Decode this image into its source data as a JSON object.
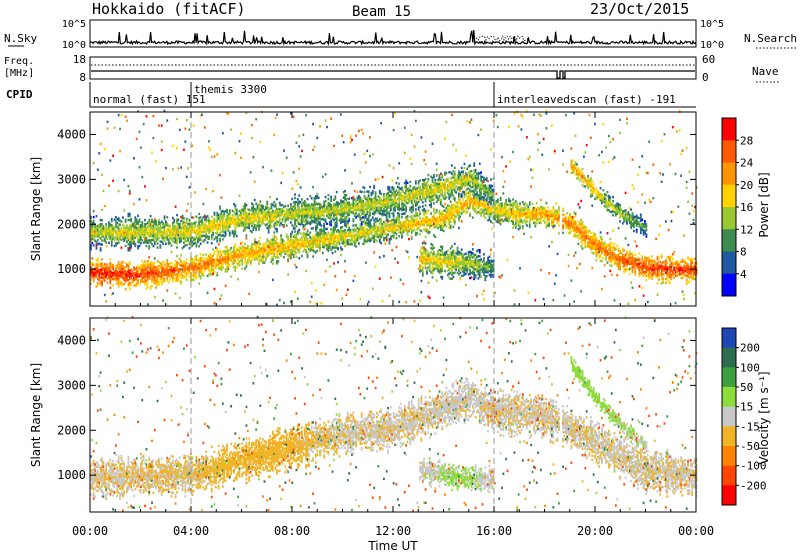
{
  "header": {
    "station": "Hokkaido (fitACF)",
    "beam": "Beam 15",
    "date": "23/Oct/2015"
  },
  "top_panels": {
    "nsky_label": "N.Sky",
    "nsearch_label": "N.Search",
    "nsky_ticks": [
      "10^5",
      "10^0"
    ],
    "nsearch_ticks": [
      "10^5",
      "10^0"
    ],
    "freq_label_1": "Freq.",
    "freq_label_2": "[MHz]",
    "freq_ticks": [
      "18",
      "8"
    ],
    "nave_label": "Nave",
    "nave_ticks": [
      "60",
      "0"
    ],
    "cpid_label": "CPID",
    "cpid_segments": [
      {
        "name": "normal (fast) 151",
        "start_h": 0.0,
        "end_h": 4.0
      },
      {
        "name": "themis 3300",
        "start_h": 4.0,
        "end_h": 16.0
      },
      {
        "name": "interleavedscan (fast) -191",
        "start_h": 16.0,
        "end_h": 24.0
      }
    ]
  },
  "power_legend": {
    "label": "Power [dB]",
    "ticks": [
      "28",
      "24",
      "20",
      "16",
      "12",
      "8",
      "4"
    ],
    "colors": [
      "#ff0000",
      "#ff5a00",
      "#ff9600",
      "#ffd200",
      "#9ac832",
      "#3c8c50",
      "#1e5aa0",
      "#0000ff"
    ]
  },
  "velocity_legend": {
    "label": "Velocity [m s⁻¹]",
    "ticks": [
      "200",
      "100",
      "50",
      "15",
      "-15",
      "-50",
      "-100",
      "-200"
    ],
    "colors": [
      "#1e46b4",
      "#2e6e50",
      "#3ca03c",
      "#8cdc3c",
      "#c8c8c8",
      "#f0b428",
      "#ff8200",
      "#ff4600",
      "#ff0000"
    ]
  },
  "chart_data": {
    "type": "heatmap",
    "xlabel": "Time UT",
    "ylabel": "Slant Range [km]",
    "x_ticks": [
      "00:00",
      "04:00",
      "08:00",
      "12:00",
      "16:00",
      "20:00",
      "00:00"
    ],
    "y_ticks": [
      "1000",
      "2000",
      "3000",
      "4000"
    ],
    "xlim_hours": [
      0,
      24
    ],
    "ylim_km": [
      180,
      4500
    ],
    "cpid_change_hours": [
      4.0,
      16.0
    ],
    "data_gap_hours": [
      18.55,
      18.65
    ],
    "power_backscatter_bands": [
      {
        "points": [
          [
            0.0,
            900,
            30
          ],
          [
            2.0,
            850,
            28
          ],
          [
            4.0,
            1000,
            25
          ],
          [
            6.0,
            1300,
            22
          ],
          [
            8.0,
            1500,
            20
          ],
          [
            10.0,
            1700,
            18
          ],
          [
            12.0,
            1900,
            18
          ],
          [
            13.0,
            2000,
            20
          ],
          [
            14.0,
            2100,
            20
          ],
          [
            15.0,
            2500,
            22
          ],
          [
            16.0,
            2300,
            18
          ],
          [
            17.0,
            2200,
            20
          ],
          [
            18.0,
            2200,
            22
          ],
          [
            19.0,
            2000,
            24
          ],
          [
            20.0,
            1500,
            24
          ],
          [
            21.0,
            1200,
            26
          ],
          [
            22.0,
            1000,
            28
          ],
          [
            24.0,
            950,
            28
          ]
        ],
        "width_km": 260
      },
      {
        "points": [
          [
            0.0,
            1800,
            16
          ],
          [
            4.0,
            1800,
            18
          ],
          [
            6.0,
            2100,
            18
          ],
          [
            8.0,
            2200,
            16
          ],
          [
            10.0,
            2300,
            16
          ],
          [
            12.0,
            2500,
            16
          ],
          [
            14.0,
            2800,
            18
          ],
          [
            15.0,
            3000,
            16
          ],
          [
            16.0,
            2600,
            12
          ]
        ],
        "width_km": 320
      },
      {
        "points": [
          [
            13.0,
            1200,
            20
          ],
          [
            14.0,
            1150,
            18
          ],
          [
            15.0,
            1100,
            16
          ],
          [
            16.0,
            1000,
            12
          ]
        ],
        "width_km": 300
      },
      {
        "points": [
          [
            19.0,
            3300,
            22
          ],
          [
            20.0,
            2700,
            20
          ],
          [
            21.0,
            2200,
            16
          ],
          [
            22.0,
            1900,
            12
          ]
        ],
        "width_km": 180
      }
    ],
    "velocity_backscatter_bands": [
      {
        "points": [
          [
            0.0,
            900,
            -10
          ],
          [
            4.0,
            1000,
            -20
          ],
          [
            6.0,
            1300,
            -40
          ],
          [
            8.0,
            1600,
            -30
          ],
          [
            10.0,
            1900,
            -10
          ],
          [
            12.0,
            2000,
            -10
          ],
          [
            15.0,
            2700,
            -5
          ],
          [
            16.0,
            2400,
            -10
          ],
          [
            18.0,
            2300,
            -10
          ],
          [
            20.0,
            1700,
            -10
          ],
          [
            22.0,
            1100,
            -10
          ],
          [
            24.0,
            950,
            -10
          ]
        ],
        "width_km": 420
      },
      {
        "points": [
          [
            13.0,
            1100,
            -10
          ],
          [
            14.0,
            1000,
            20
          ],
          [
            15.0,
            900,
            20
          ],
          [
            16.0,
            900,
            -10
          ]
        ],
        "width_km": 260
      },
      {
        "points": [
          [
            19.0,
            3500,
            30
          ],
          [
            20.0,
            2700,
            30
          ],
          [
            21.0,
            2100,
            20
          ],
          [
            22.0,
            1600,
            15
          ]
        ],
        "width_km": 150
      }
    ]
  }
}
